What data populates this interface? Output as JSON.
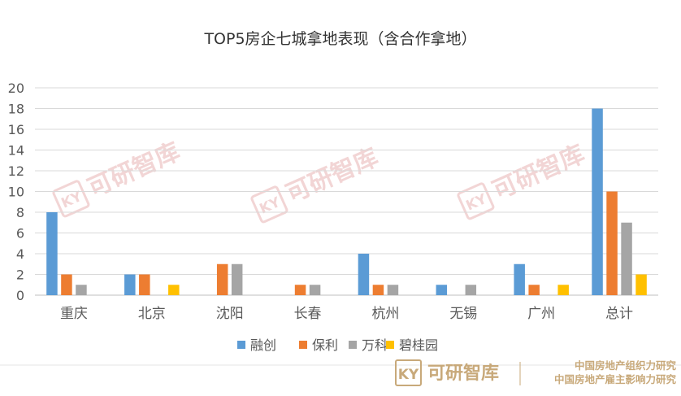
{
  "chart_data": {
    "type": "bar",
    "title": "TOP5房企七城拿地表现（含合作拿地）",
    "categories": [
      "重庆",
      "北京",
      "沈阳",
      "长春",
      "杭州",
      "无锡",
      "广州",
      "总计"
    ],
    "series": [
      {
        "name": "融创",
        "color": "#5B9BD5",
        "values": [
          8,
          2,
          0,
          0,
          4,
          1,
          3,
          18
        ]
      },
      {
        "name": "保利",
        "color": "#ED7D31",
        "values": [
          2,
          2,
          3,
          1,
          1,
          0,
          1,
          10
        ]
      },
      {
        "name": "万科",
        "color": "#A5A5A5",
        "values": [
          1,
          0,
          3,
          1,
          1,
          1,
          0,
          7
        ]
      },
      {
        "name": "碧桂园",
        "color": "#FFC000",
        "values": [
          0,
          1,
          0,
          0,
          0,
          0,
          1,
          2
        ]
      }
    ],
    "ylim": [
      0,
      20
    ],
    "yticks": [
      0,
      2,
      4,
      6,
      8,
      10,
      12,
      14,
      16,
      18,
      20
    ],
    "grid": true,
    "legend_position": "bottom"
  },
  "watermark": {
    "text": "可研智库",
    "color": "#E8B4B4"
  },
  "footer": {
    "brand": "可研智库",
    "line1": "中国房地产组织力研究",
    "line2": "中国房地产雇主影响力研究",
    "color": "#C8A97A"
  }
}
